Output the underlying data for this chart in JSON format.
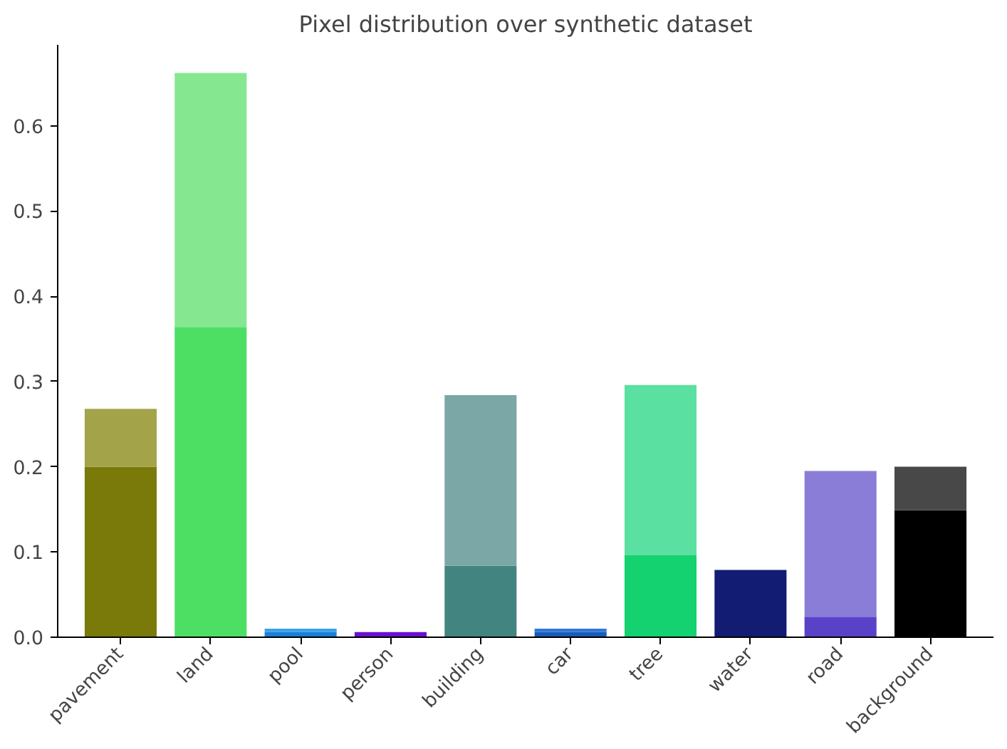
{
  "chart_data": {
    "type": "bar",
    "title": "Pixel distribution over synthetic dataset",
    "stacked": true,
    "categories": [
      "pavement",
      "land",
      "pool",
      "person",
      "building",
      "car",
      "tree",
      "water",
      "road",
      "background"
    ],
    "series": [
      {
        "colors": [
          "#7a7a0a",
          "#4cdf64",
          "#1a7fd6",
          "#6a10d0",
          "#428580",
          "#1a5ab8",
          "#14d26f",
          "#131c73",
          "#5a42c8",
          "#000000"
        ],
        "values": [
          0.2,
          0.364,
          0.006,
          0.006,
          0.084,
          0.006,
          0.096,
          0.079,
          0.024,
          0.149
        ]
      },
      {
        "colors": [
          "#a3a34a",
          "#85e890",
          "#3aa0e8",
          "#7a30e0",
          "#7ba7a6",
          "#2f78d8",
          "#5ae0a0",
          "#131c73",
          "#8a7dd8",
          "#484848"
        ],
        "values": [
          0.068,
          0.298,
          0.004,
          0,
          0.2,
          0.004,
          0.2,
          0,
          0.171,
          0.051
        ]
      }
    ],
    "ylim": [
      0,
      0.695
    ],
    "yticks": [
      {
        "value": 0,
        "label": "0.0"
      },
      0.1,
      0.2,
      0.3,
      0.4,
      0.5,
      0.6
    ],
    "grid": false
  }
}
